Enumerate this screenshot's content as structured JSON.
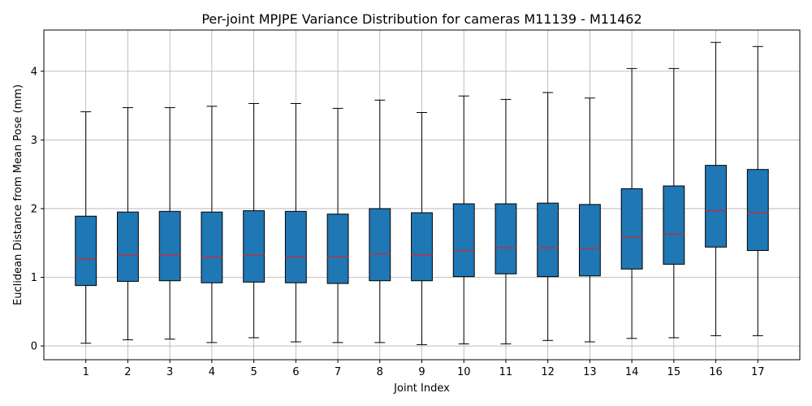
{
  "chart_data": {
    "type": "boxplot",
    "title": "Per-joint MPJPE Variance Distribution for cameras M11139 - M11462",
    "xlabel": "Joint Index",
    "ylabel": "Euclidean Distance from Mean Pose (mm)",
    "ylim": [
      -0.2,
      4.6
    ],
    "yticks": [
      0,
      1,
      2,
      3,
      4
    ],
    "grid": true,
    "colors": {
      "box": "#1f77b4",
      "median": "#d62728",
      "grid": "#b0b0b0"
    },
    "categories": [
      "1",
      "2",
      "3",
      "4",
      "5",
      "6",
      "7",
      "8",
      "9",
      "10",
      "11",
      "12",
      "13",
      "14",
      "15",
      "16",
      "17"
    ],
    "boxes": [
      {
        "whisker_low": 0.04,
        "q1": 0.88,
        "median": 1.27,
        "q3": 1.89,
        "whisker_high": 3.41
      },
      {
        "whisker_low": 0.09,
        "q1": 0.94,
        "median": 1.32,
        "q3": 1.95,
        "whisker_high": 3.47
      },
      {
        "whisker_low": 0.1,
        "q1": 0.95,
        "median": 1.33,
        "q3": 1.96,
        "whisker_high": 3.47
      },
      {
        "whisker_low": 0.05,
        "q1": 0.92,
        "median": 1.29,
        "q3": 1.95,
        "whisker_high": 3.49
      },
      {
        "whisker_low": 0.12,
        "q1": 0.93,
        "median": 1.32,
        "q3": 1.97,
        "whisker_high": 3.53
      },
      {
        "whisker_low": 0.06,
        "q1": 0.92,
        "median": 1.3,
        "q3": 1.96,
        "whisker_high": 3.53
      },
      {
        "whisker_low": 0.05,
        "q1": 0.91,
        "median": 1.3,
        "q3": 1.92,
        "whisker_high": 3.46
      },
      {
        "whisker_low": 0.05,
        "q1": 0.95,
        "median": 1.34,
        "q3": 2.0,
        "whisker_high": 3.58
      },
      {
        "whisker_low": 0.02,
        "q1": 0.95,
        "median": 1.33,
        "q3": 1.94,
        "whisker_high": 3.4
      },
      {
        "whisker_low": 0.03,
        "q1": 1.01,
        "median": 1.39,
        "q3": 2.07,
        "whisker_high": 3.64
      },
      {
        "whisker_low": 0.03,
        "q1": 1.05,
        "median": 1.43,
        "q3": 2.07,
        "whisker_high": 3.59
      },
      {
        "whisker_low": 0.08,
        "q1": 1.01,
        "median": 1.43,
        "q3": 2.08,
        "whisker_high": 3.69
      },
      {
        "whisker_low": 0.06,
        "q1": 1.02,
        "median": 1.42,
        "q3": 2.06,
        "whisker_high": 3.61
      },
      {
        "whisker_low": 0.11,
        "q1": 1.12,
        "median": 1.58,
        "q3": 2.29,
        "whisker_high": 4.04
      },
      {
        "whisker_low": 0.12,
        "q1": 1.19,
        "median": 1.63,
        "q3": 2.33,
        "whisker_high": 4.04
      },
      {
        "whisker_low": 0.15,
        "q1": 1.44,
        "median": 1.97,
        "q3": 2.63,
        "whisker_high": 4.42
      },
      {
        "whisker_low": 0.15,
        "q1": 1.39,
        "median": 1.94,
        "q3": 2.57,
        "whisker_high": 4.36
      }
    ]
  }
}
